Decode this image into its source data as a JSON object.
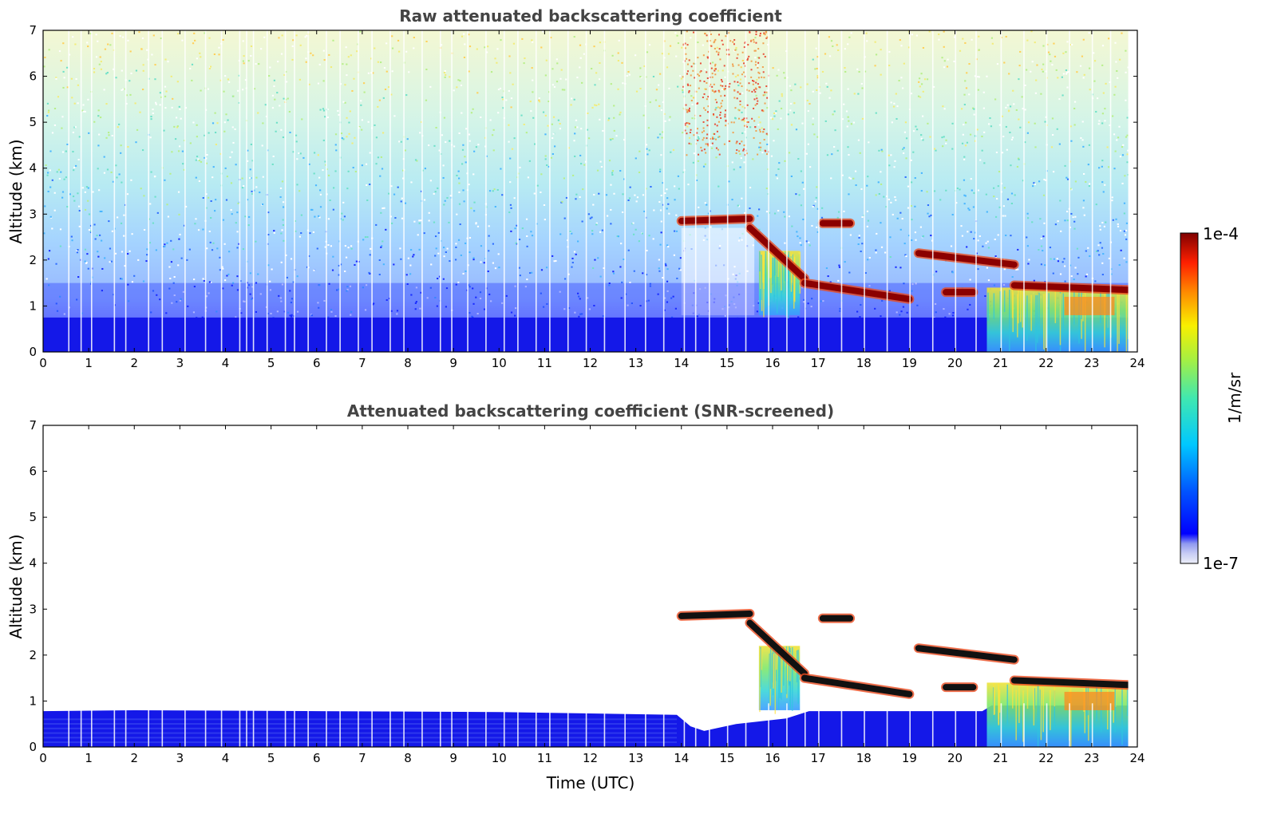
{
  "chart_data": [
    {
      "type": "heatmap",
      "title": "Raw attenuated backscattering coefficient",
      "xlabel": "",
      "ylabel": "Altitude (km)",
      "xlim": [
        0,
        24
      ],
      "ylim": [
        0,
        7
      ],
      "xticks": [
        0,
        1,
        2,
        3,
        4,
        5,
        6,
        7,
        8,
        9,
        10,
        11,
        12,
        13,
        14,
        15,
        16,
        17,
        18,
        19,
        20,
        21,
        22,
        23,
        24
      ],
      "yticks": [
        0,
        1,
        2,
        3,
        4,
        5,
        6,
        7
      ],
      "grid": false,
      "features": {
        "boundary_layer_top_km": 0.75,
        "cloud_layers": [
          {
            "t_start": 14.0,
            "t_end": 15.5,
            "alt_km": [
              2.85,
              2.9
            ]
          },
          {
            "t_start": 15.5,
            "t_end": 16.7,
            "alt_km": [
              2.7,
              1.6
            ]
          },
          {
            "t_start": 16.7,
            "t_end": 19.0,
            "alt_km": [
              1.5,
              1.15
            ]
          },
          {
            "t_start": 17.1,
            "t_end": 17.7,
            "alt_km": [
              2.8,
              2.8
            ]
          },
          {
            "t_start": 19.2,
            "t_end": 21.3,
            "alt_km": [
              2.15,
              1.9
            ]
          },
          {
            "t_start": 19.8,
            "t_end": 20.4,
            "alt_km": [
              1.3,
              1.3
            ]
          },
          {
            "t_start": 21.3,
            "t_end": 23.8,
            "alt_km": [
              1.45,
              1.35
            ]
          }
        ],
        "precipitation_shafts": [
          {
            "t_start": 15.7,
            "t_end": 16.6,
            "alt_top_km": 2.2,
            "alt_bottom_km": 0.8
          },
          {
            "t_start": 20.7,
            "t_end": 23.8,
            "alt_top_km": 1.4,
            "alt_bottom_km": 0.0
          }
        ]
      }
    },
    {
      "type": "heatmap",
      "title": "Attenuated backscattering coefficient (SNR-screened)",
      "xlabel": "Time (UTC)",
      "ylabel": "Altitude (km)",
      "xlim": [
        0,
        24
      ],
      "ylim": [
        0,
        7
      ],
      "xticks": [
        0,
        1,
        2,
        3,
        4,
        5,
        6,
        7,
        8,
        9,
        10,
        11,
        12,
        13,
        14,
        15,
        16,
        17,
        18,
        19,
        20,
        21,
        22,
        23,
        24
      ],
      "yticks": [
        0,
        1,
        2,
        3,
        4,
        5,
        6,
        7
      ],
      "grid": false
    }
  ],
  "colorbar": {
    "label": "1/m/sr",
    "max_label": "1e-4",
    "min_label": "1e-7",
    "range": [
      1e-07,
      0.0001
    ],
    "scale": "log",
    "colormap": "jet",
    "placement": "right"
  },
  "colors": {
    "title": "#444444",
    "background": "#ffffff",
    "boundary_layer": "#1418e8",
    "cloud": "#8b0000"
  }
}
